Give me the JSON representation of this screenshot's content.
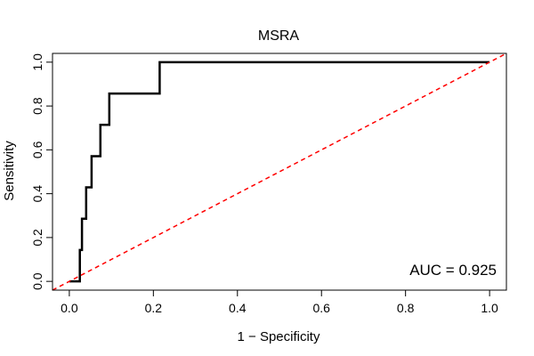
{
  "chart_data": {
    "type": "line",
    "title": "MSRA",
    "xlabel": "1 − Specificity",
    "ylabel": "Sensitivity",
    "xlim": [
      -0.04,
      1.04
    ],
    "ylim": [
      -0.04,
      1.04
    ],
    "x_ticks": [
      0.0,
      0.2,
      0.4,
      0.6,
      0.8,
      1.0
    ],
    "y_ticks": [
      0.0,
      0.2,
      0.4,
      0.6,
      0.8,
      1.0
    ],
    "x_tick_labels": [
      "0.0",
      "0.2",
      "0.4",
      "0.6",
      "0.8",
      "1.0"
    ],
    "y_tick_labels": [
      "0.0",
      "0.2",
      "0.4",
      "0.6",
      "0.8",
      "1.0"
    ],
    "series": [
      {
        "name": "ROC curve",
        "color": "#000000",
        "style": "solid",
        "points": [
          [
            0.0,
            0.0
          ],
          [
            0.025,
            0.0
          ],
          [
            0.025,
            0.143
          ],
          [
            0.03,
            0.143
          ],
          [
            0.03,
            0.286
          ],
          [
            0.04,
            0.286
          ],
          [
            0.04,
            0.429
          ],
          [
            0.053,
            0.429
          ],
          [
            0.053,
            0.571
          ],
          [
            0.074,
            0.571
          ],
          [
            0.074,
            0.714
          ],
          [
            0.095,
            0.714
          ],
          [
            0.095,
            0.857
          ],
          [
            0.215,
            0.857
          ],
          [
            0.215,
            1.0
          ],
          [
            1.0,
            1.0
          ]
        ]
      },
      {
        "name": "Reference diagonal",
        "color": "#ff0000",
        "style": "dashed",
        "points": [
          [
            -0.04,
            -0.04
          ],
          [
            1.04,
            1.04
          ]
        ]
      }
    ],
    "annotations": [
      {
        "text": "AUC = 0.925"
      }
    ]
  }
}
